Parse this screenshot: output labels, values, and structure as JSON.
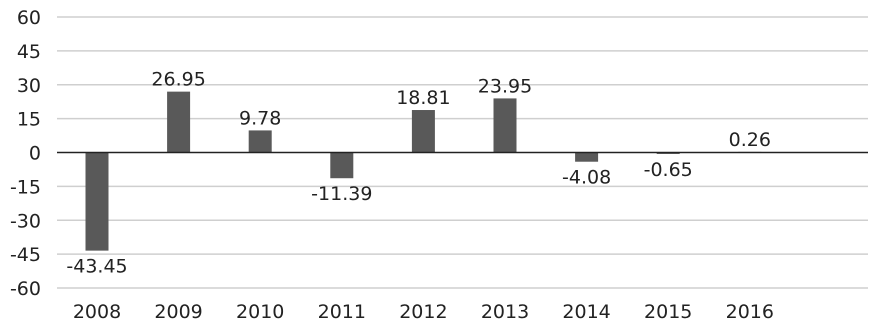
{
  "chart_data": {
    "type": "bar",
    "title": "",
    "xlabel": "",
    "ylabel": "",
    "categories": [
      "2008",
      "2009",
      "2010",
      "2011",
      "2012",
      "2013",
      "2014",
      "2015",
      "2016"
    ],
    "values": [
      -43.45,
      26.95,
      9.78,
      -11.39,
      18.81,
      23.95,
      -4.08,
      -0.65,
      0.26
    ],
    "data_labels": [
      "-43.45",
      "26.95",
      "9.78",
      "-11.39",
      "18.81",
      "23.95",
      "-4.08",
      "-0.65",
      "0.26"
    ],
    "ylim": [
      -60,
      60
    ],
    "yticks": [
      60,
      45,
      30,
      15,
      0,
      -15,
      -30,
      -45,
      -60
    ],
    "grid": true,
    "legend": "none",
    "colors": {
      "bar": "#595959",
      "grid": "#cfcfcf",
      "zero_line": "#222222",
      "text": "#222222"
    }
  }
}
